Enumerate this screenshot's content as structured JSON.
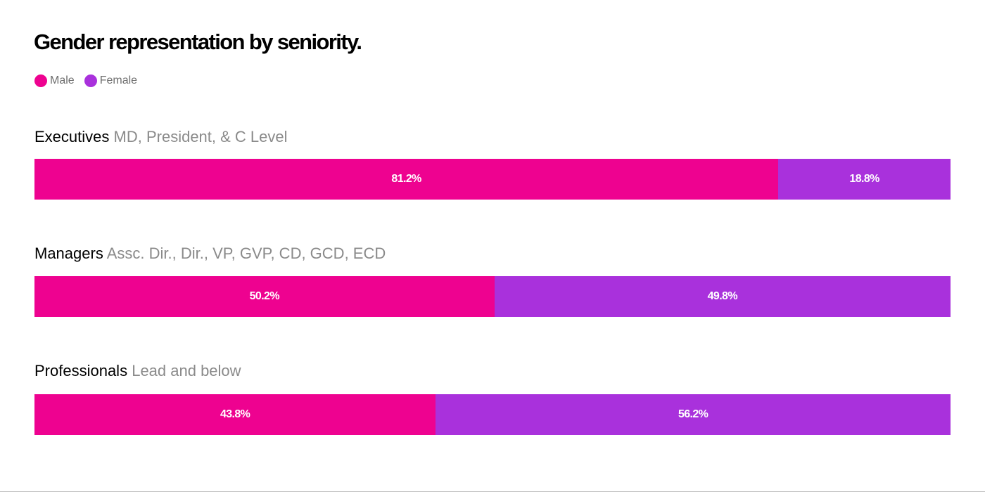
{
  "chart_data": {
    "type": "bar",
    "orientation": "horizontal",
    "stacked": true,
    "percent_stacked": true,
    "title": "Gender representation by seniority.",
    "legend_position": "top-left",
    "legend": [
      "Male",
      "Female"
    ],
    "categories": [
      {
        "name": "Executives",
        "description": "MD, President, & C Level"
      },
      {
        "name": "Managers",
        "description": "Assc. Dir., Dir., VP, GVP, CD, GCD, ECD"
      },
      {
        "name": "Professionals",
        "description": "Lead and below"
      }
    ],
    "series": [
      {
        "name": "Male",
        "color": "#ee0290",
        "values": [
          81.2,
          50.2,
          43.8
        ],
        "labels": [
          "81.2%",
          "50.2%",
          "43.8%"
        ]
      },
      {
        "name": "Female",
        "color": "#a931dc",
        "values": [
          18.8,
          49.8,
          56.2
        ],
        "labels": [
          "18.8%",
          "49.8%",
          "56.2%"
        ]
      }
    ],
    "xlim": [
      0,
      100
    ],
    "grid": false
  }
}
